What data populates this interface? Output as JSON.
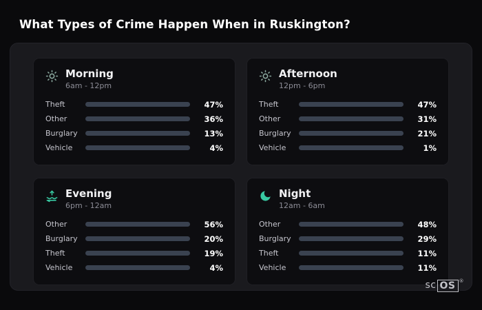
{
  "page": {
    "title": "What Types of Crime Happen When in Ruskington?",
    "logo": {
      "plain": "sc",
      "boxed": "OS",
      "reg": "®"
    }
  },
  "palette": {
    "theft": "#a961e8",
    "other": "#8793a6",
    "burglary": "#e8861f",
    "vehicle": "#4478f2"
  },
  "chart_data": [
    {
      "type": "bar",
      "title": "Morning",
      "subtitle": "6am - 12pm",
      "icon": "sun-icon",
      "categories": [
        "Theft",
        "Other",
        "Burglary",
        "Vehicle"
      ],
      "values": [
        47,
        36,
        13,
        4
      ],
      "display": [
        "47%",
        "36%",
        "13%",
        "4%"
      ],
      "colors": [
        "theft",
        "other",
        "burglary",
        "vehicle"
      ],
      "xlim": [
        0,
        100
      ]
    },
    {
      "type": "bar",
      "title": "Afternoon",
      "subtitle": "12pm - 6pm",
      "icon": "sun-icon",
      "categories": [
        "Theft",
        "Other",
        "Burglary",
        "Vehicle"
      ],
      "values": [
        47,
        31,
        21,
        1
      ],
      "display": [
        "47%",
        "31%",
        "21%",
        "1%"
      ],
      "colors": [
        "theft",
        "other",
        "burglary",
        "vehicle"
      ],
      "xlim": [
        0,
        100
      ]
    },
    {
      "type": "bar",
      "title": "Evening",
      "subtitle": "6pm - 12am",
      "icon": "sunset-icon",
      "categories": [
        "Other",
        "Burglary",
        "Theft",
        "Vehicle"
      ],
      "values": [
        56,
        20,
        19,
        4
      ],
      "display": [
        "56%",
        "20%",
        "19%",
        "4%"
      ],
      "colors": [
        "other",
        "burglary",
        "theft",
        "vehicle"
      ],
      "xlim": [
        0,
        100
      ]
    },
    {
      "type": "bar",
      "title": "Night",
      "subtitle": "12am - 6am",
      "icon": "moon-icon",
      "categories": [
        "Other",
        "Burglary",
        "Theft",
        "Vehicle"
      ],
      "values": [
        48,
        29,
        11,
        11
      ],
      "display": [
        "48%",
        "29%",
        "11%",
        "11%"
      ],
      "colors": [
        "other",
        "burglary",
        "theft",
        "vehicle"
      ],
      "xlim": [
        0,
        100
      ]
    }
  ]
}
